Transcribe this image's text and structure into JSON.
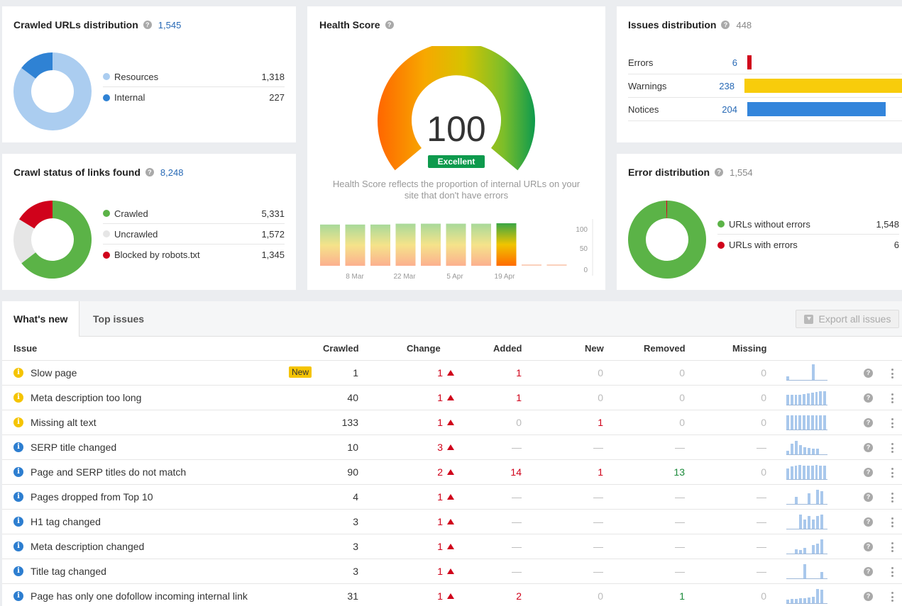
{
  "crawled_urls": {
    "title": "Crawled URLs distribution",
    "total": "1,545",
    "legend": [
      {
        "label": "Resources",
        "value": "1,318",
        "color": "#abcdf0",
        "num": 1318
      },
      {
        "label": "Internal",
        "value": "227",
        "color": "#2f82d4",
        "num": 227
      }
    ]
  },
  "crawl_status": {
    "title": "Crawl status of links found",
    "total": "8,248",
    "legend": [
      {
        "label": "Crawled",
        "value": "5,331",
        "color": "#5bb347",
        "num": 5331
      },
      {
        "label": "Uncrawled",
        "value": "1,572",
        "color": "#e6e6e6",
        "num": 1572
      },
      {
        "label": "Blocked by robots.txt",
        "value": "1,345",
        "color": "#d0021b",
        "num": 1345
      }
    ]
  },
  "health": {
    "title": "Health Score",
    "score": "100",
    "badge": "Excellent",
    "description": "Health Score reflects the proportion of internal URLs on your site that don't have errors",
    "chart": {
      "y_ticks": [
        "100",
        "50",
        "0"
      ],
      "x_labels": [
        "8 Mar",
        "22 Mar",
        "5 Apr",
        "19 Apr"
      ],
      "bars": [
        97,
        97,
        97,
        99,
        99,
        99,
        99,
        100,
        0,
        0
      ],
      "highlight_index": 7
    }
  },
  "issues_dist": {
    "title": "Issues distribution",
    "total": "448",
    "rows": [
      {
        "label": "Errors",
        "value": "6",
        "num": 6,
        "color": "#d0021b"
      },
      {
        "label": "Warnings",
        "value": "238",
        "num": 238,
        "color": "#f8cc0b"
      },
      {
        "label": "Notices",
        "value": "204",
        "num": 204,
        "color": "#3385db"
      }
    ]
  },
  "error_dist": {
    "title": "Error distribution",
    "total": "1,554",
    "legend": [
      {
        "label": "URLs without errors",
        "value": "1,548",
        "color": "#5bb347",
        "num": 1548
      },
      {
        "label": "URLs with errors",
        "value": "6",
        "color": "#d0021b",
        "num": 6
      }
    ]
  },
  "tabs": {
    "whats_new": "What's new",
    "top_issues": "Top issues",
    "export": "Export all issues"
  },
  "table": {
    "headers": {
      "issue": "Issue",
      "crawled": "Crawled",
      "change": "Change",
      "added": "Added",
      "new": "New",
      "removed": "Removed",
      "missing": "Missing"
    },
    "new_badge": "New",
    "rows": [
      {
        "type": "warning",
        "issue": "Slow page",
        "is_new": true,
        "crawled": "1",
        "change": "1",
        "added": "1",
        "added_style": "red",
        "new": "0",
        "new_style": "lightgrey",
        "removed": "0",
        "removed_style": "lightgrey",
        "missing": "0",
        "missing_style": "lightgrey",
        "spark": [
          5,
          0,
          0,
          0,
          0,
          0,
          22,
          0,
          0
        ]
      },
      {
        "type": "warning",
        "issue": "Meta description too long",
        "is_new": false,
        "crawled": "40",
        "change": "1",
        "added": "1",
        "added_style": "red",
        "new": "0",
        "new_style": "lightgrey",
        "removed": "0",
        "removed_style": "lightgrey",
        "missing": "0",
        "missing_style": "lightgrey",
        "spark": [
          14,
          14,
          14,
          14,
          15,
          16,
          17,
          18,
          19,
          19
        ]
      },
      {
        "type": "warning",
        "issue": "Missing alt text",
        "is_new": false,
        "crawled": "133",
        "change": "1",
        "added": "0",
        "added_style": "lightgrey",
        "new": "1",
        "new_style": "red",
        "removed": "0",
        "removed_style": "lightgrey",
        "missing": "0",
        "missing_style": "lightgrey",
        "spark": [
          20,
          20,
          20,
          20,
          20,
          20,
          20,
          20,
          20,
          20
        ]
      },
      {
        "type": "info",
        "issue": "SERP title changed",
        "is_new": false,
        "crawled": "10",
        "change": "3",
        "added": "—",
        "added_style": "lightgrey",
        "new": "—",
        "new_style": "lightgrey",
        "removed": "—",
        "removed_style": "lightgrey",
        "missing": "—",
        "missing_style": "lightgrey",
        "spark": [
          5,
          15,
          19,
          13,
          10,
          9,
          8,
          8
        ]
      },
      {
        "type": "info",
        "issue": "Page and SERP titles do not match",
        "is_new": false,
        "crawled": "90",
        "change": "2",
        "added": "14",
        "added_style": "red",
        "new": "1",
        "new_style": "red",
        "removed": "13",
        "removed_style": "green",
        "missing": "0",
        "missing_style": "lightgrey",
        "spark": [
          15,
          18,
          19,
          20,
          19,
          19,
          19,
          20,
          19,
          19
        ]
      },
      {
        "type": "info",
        "issue": "Pages dropped from Top 10",
        "is_new": false,
        "crawled": "4",
        "change": "1",
        "added": "—",
        "added_style": "lightgrey",
        "new": "—",
        "new_style": "lightgrey",
        "removed": "—",
        "removed_style": "lightgrey",
        "missing": "—",
        "missing_style": "lightgrey",
        "spark": [
          0,
          0,
          10,
          0,
          0,
          15,
          0,
          20,
          18
        ]
      },
      {
        "type": "info",
        "issue": "H1 tag changed",
        "is_new": false,
        "crawled": "3",
        "change": "1",
        "added": "—",
        "added_style": "lightgrey",
        "new": "—",
        "new_style": "lightgrey",
        "removed": "—",
        "removed_style": "lightgrey",
        "missing": "—",
        "missing_style": "lightgrey",
        "spark": [
          0,
          0,
          0,
          20,
          13,
          18,
          13,
          18,
          20
        ]
      },
      {
        "type": "info",
        "issue": "Meta description changed",
        "is_new": false,
        "crawled": "3",
        "change": "1",
        "added": "—",
        "added_style": "lightgrey",
        "new": "—",
        "new_style": "lightgrey",
        "removed": "—",
        "removed_style": "lightgrey",
        "missing": "—",
        "missing_style": "lightgrey",
        "spark": [
          0,
          0,
          6,
          5,
          8,
          0,
          12,
          14,
          20
        ]
      },
      {
        "type": "info",
        "issue": "Title tag changed",
        "is_new": false,
        "crawled": "3",
        "change": "1",
        "added": "—",
        "added_style": "lightgrey",
        "new": "—",
        "new_style": "lightgrey",
        "removed": "—",
        "removed_style": "lightgrey",
        "missing": "—",
        "missing_style": "lightgrey",
        "spark": [
          0,
          0,
          0,
          0,
          20,
          0,
          0,
          0,
          9
        ]
      },
      {
        "type": "info",
        "issue": "Page has only one dofollow incoming internal link",
        "is_new": false,
        "crawled": "31",
        "change": "1",
        "added": "2",
        "added_style": "red",
        "new": "0",
        "new_style": "lightgrey",
        "removed": "1",
        "removed_style": "green",
        "missing": "0",
        "missing_style": "lightgrey",
        "spark": [
          5,
          6,
          6,
          7,
          7,
          8,
          9,
          20,
          19
        ]
      }
    ]
  }
}
